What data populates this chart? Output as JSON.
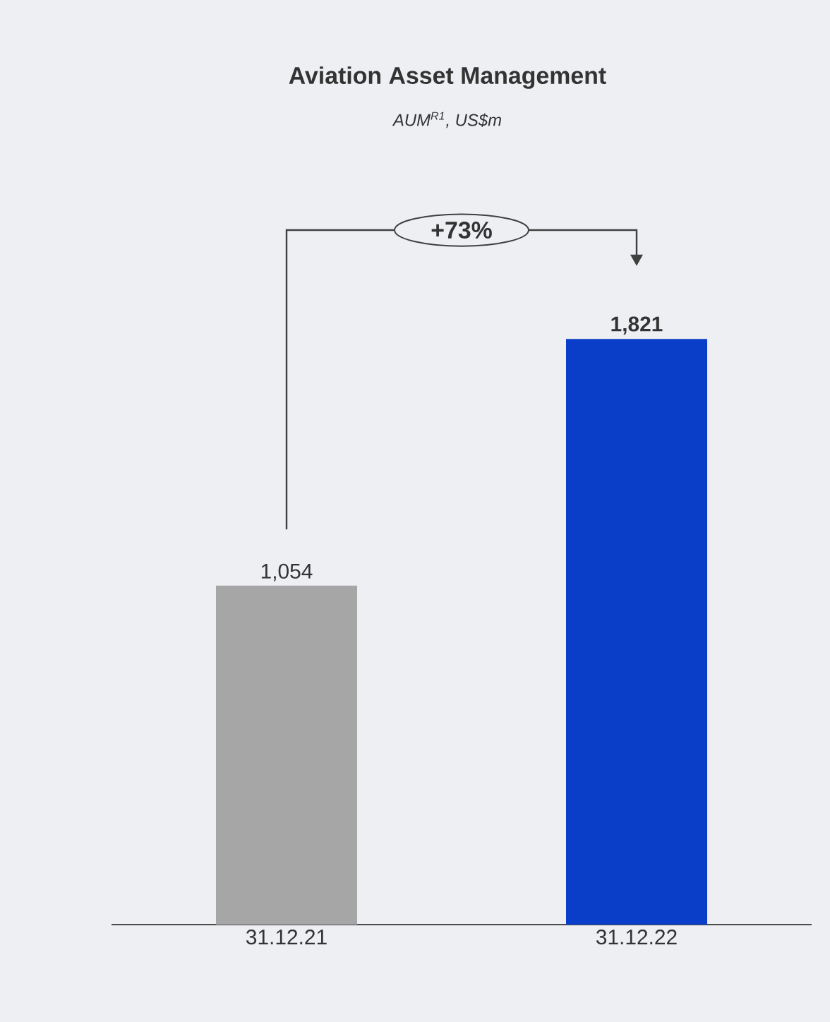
{
  "chart_data": {
    "type": "bar",
    "title": "Aviation Asset Management",
    "subtitle": "AUM$^{R1}$, US$m",
    "categories": [
      "31.12.21",
      "31.12.22"
    ],
    "values": [
      1054,
      1821
    ],
    "colors": [
      "#a6a6a6",
      "#0a3ec8"
    ],
    "value_labels": [
      "1,054",
      "1,821"
    ],
    "annotations": [
      "+73%"
    ]
  }
}
